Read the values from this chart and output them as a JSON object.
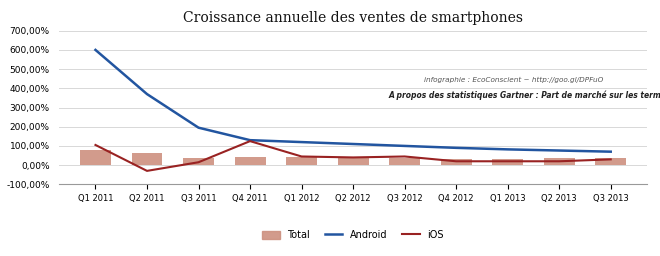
{
  "title": "Croissance annuelle des ventes de smartphones",
  "categories": [
    "Q1 2011",
    "Q2 2011",
    "Q3 2011",
    "Q4 2011",
    "Q1 2012",
    "Q2 2012",
    "Q3 2012",
    "Q4 2012",
    "Q1 2013",
    "Q2 2013",
    "Q3 2013"
  ],
  "android": [
    600,
    370,
    195,
    130,
    120,
    110,
    100,
    90,
    82,
    76,
    70
  ],
  "ios": [
    105,
    -30,
    15,
    125,
    45,
    40,
    45,
    20,
    20,
    20,
    30
  ],
  "total": [
    80,
    65,
    35,
    42,
    40,
    40,
    37,
    30,
    33,
    38,
    35
  ],
  "android_color": "#2255a0",
  "ios_color": "#992222",
  "total_color": "#cd9080",
  "background_color": "#ffffff",
  "annotation1": "infographie : EcoConscient ~ http://goo.gl/DPFuO",
  "annotation2": "A propos des statistiques Gartner : Part de marché sur les terminaux vendus",
  "ylim_min": -100,
  "ylim_max": 700,
  "yticks": [
    -100,
    0,
    100,
    200,
    300,
    400,
    500,
    600,
    700
  ]
}
